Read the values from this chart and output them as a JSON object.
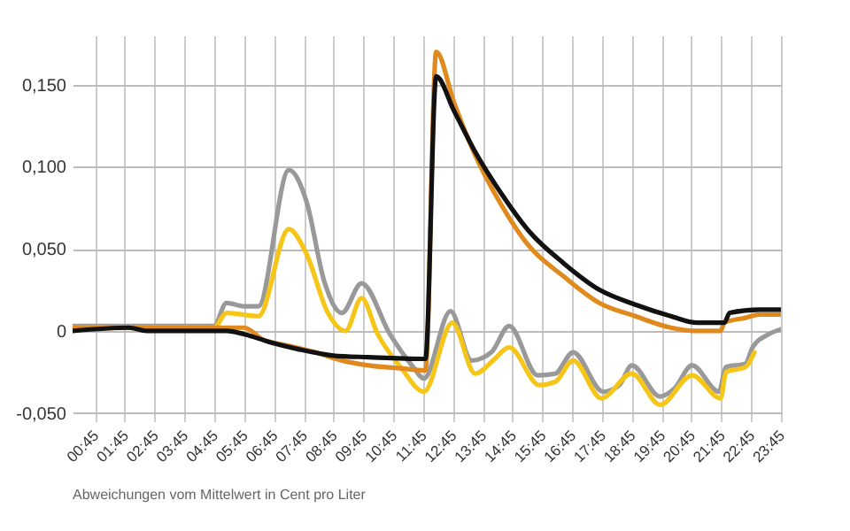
{
  "chart_data": {
    "type": "line",
    "annotations": [
      "Abweichungen vom Mittelwert in Cent pro Liter"
    ],
    "xlim": [
      0,
      23.75
    ],
    "xticks": [
      {
        "value": 0.75,
        "label": "00:45"
      },
      {
        "value": 1.75,
        "label": "01:45"
      },
      {
        "value": 2.75,
        "label": "02:45"
      },
      {
        "value": 3.75,
        "label": "03:45"
      },
      {
        "value": 4.75,
        "label": "04:45"
      },
      {
        "value": 5.75,
        "label": "05:45"
      },
      {
        "value": 6.75,
        "label": "06:45"
      },
      {
        "value": 7.75,
        "label": "07:45"
      },
      {
        "value": 8.75,
        "label": "08:45"
      },
      {
        "value": 9.75,
        "label": "09:45"
      },
      {
        "value": 10.75,
        "label": "10:45"
      },
      {
        "value": 11.75,
        "label": "11:45"
      },
      {
        "value": 12.75,
        "label": "12:45"
      },
      {
        "value": 13.75,
        "label": "13:45"
      },
      {
        "value": 14.75,
        "label": "14:45"
      },
      {
        "value": 15.75,
        "label": "15:45"
      },
      {
        "value": 16.75,
        "label": "16:45"
      },
      {
        "value": 17.75,
        "label": "17:45"
      },
      {
        "value": 18.75,
        "label": "18:45"
      },
      {
        "value": 19.75,
        "label": "19:45"
      },
      {
        "value": 20.75,
        "label": "20:45"
      },
      {
        "value": 21.75,
        "label": "21:45"
      },
      {
        "value": 22.75,
        "label": "22:45"
      },
      {
        "value": 23.75,
        "label": "23:45"
      }
    ],
    "ylim": [
      -0.055,
      0.18
    ],
    "yticks": [
      {
        "value": -0.05,
        "label": "-0,050"
      },
      {
        "value": 0,
        "label": "0"
      },
      {
        "value": 0.05,
        "label": "0,050"
      },
      {
        "value": 0.1,
        "label": "0,100"
      },
      {
        "value": 0.15,
        "label": "0,150"
      }
    ],
    "grid": true,
    "line_style": "solid",
    "series": [
      {
        "color": "#999999",
        "x": [
          0,
          4.74,
          5.16,
          5.76,
          6.23,
          7.25,
          7.84,
          8.44,
          9.03,
          9.69,
          10.64,
          11.42,
          11.78,
          12.67,
          13.38,
          14.04,
          14.64,
          15.59,
          16.18,
          16.78,
          17.79,
          18.33,
          18.75,
          19.7,
          20.18,
          20.77,
          21.67,
          21.91,
          22.56,
          22.8,
          23.34,
          23.75
        ],
        "values": [
          0.003,
          0.003,
          0.017,
          0.015,
          0.015,
          0.098,
          0.079,
          0.03,
          0.011,
          0.029,
          -0.002,
          -0.022,
          -0.029,
          0.012,
          -0.018,
          -0.013,
          0.003,
          -0.027,
          -0.026,
          -0.013,
          -0.037,
          -0.033,
          -0.021,
          -0.04,
          -0.035,
          -0.021,
          -0.037,
          -0.022,
          -0.02,
          -0.01,
          -0.002,
          0.001
        ]
      },
      {
        "color": "#f5c518",
        "x": [
          0,
          4.74,
          5.16,
          6.23,
          7.25,
          7.84,
          8.56,
          9.15,
          9.69,
          10.23,
          11.0,
          11.78,
          12.73,
          13.5,
          14.1,
          14.64,
          15.65,
          16.18,
          16.78,
          17.73,
          18.75,
          19.7,
          20.77,
          21.73,
          21.91,
          22.56,
          22.86
        ],
        "values": [
          0.002,
          0.002,
          0.011,
          0.009,
          0.062,
          0.047,
          0.011,
          0,
          0.02,
          -0.002,
          -0.022,
          -0.037,
          0.005,
          -0.026,
          -0.018,
          -0.01,
          -0.033,
          -0.031,
          -0.018,
          -0.041,
          -0.026,
          -0.045,
          -0.027,
          -0.041,
          -0.025,
          -0.022,
          -0.013
        ]
      },
      {
        "color": "#e08a1e",
        "x": [
          0,
          5.16,
          5.76,
          6.35,
          7.25,
          8.14,
          9.03,
          9.93,
          11.12,
          11.78,
          11.83,
          12.19,
          12.79,
          13.5,
          14.4,
          15.29,
          16.48,
          17.67,
          18.87,
          20.06,
          20.95,
          21.73,
          21.85,
          22.56,
          23.04,
          23.75
        ],
        "values": [
          0.002,
          0.002,
          0.002,
          -0.005,
          -0.009,
          -0.013,
          -0.018,
          -0.021,
          -0.023,
          -0.024,
          -0.024,
          0.17,
          0.139,
          0.107,
          0.076,
          0.052,
          0.033,
          0.017,
          0.009,
          0.002,
          0,
          0,
          0.005,
          0.008,
          0.01,
          0.01
        ]
      },
      {
        "color": "#111111",
        "x": [
          0,
          1.88,
          2.48,
          5.16,
          5.76,
          6.65,
          7.54,
          8.74,
          9.93,
          11.72,
          11.83,
          12.19,
          12.79,
          13.5,
          14.4,
          15.29,
          16.48,
          17.67,
          18.87,
          20.06,
          20.95,
          21.85,
          22.03,
          23.04,
          23.75
        ],
        "values": [
          0,
          0.002,
          0,
          0,
          -0.002,
          -0.007,
          -0.011,
          -0.015,
          -0.016,
          -0.017,
          -0.017,
          0.155,
          0.134,
          0.109,
          0.083,
          0.061,
          0.041,
          0.025,
          0.016,
          0.009,
          0.005,
          0.005,
          0.011,
          0.013,
          0.013
        ]
      }
    ]
  }
}
